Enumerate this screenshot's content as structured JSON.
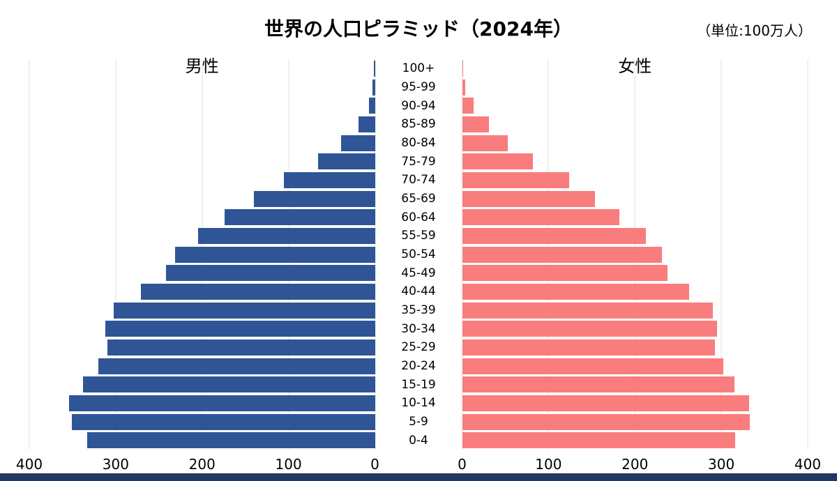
{
  "header": {
    "title": "世界の人口ピラミッド（2024年）",
    "unit_label": "（単位:100万人）"
  },
  "chart_data": {
    "type": "bar",
    "subtype": "population-pyramid",
    "orientation": "horizontal",
    "categories": [
      "100+",
      "95-99",
      "90-94",
      "85-89",
      "80-84",
      "75-79",
      "70-74",
      "65-69",
      "60-64",
      "55-59",
      "50-54",
      "45-49",
      "40-44",
      "35-39",
      "30-34",
      "25-29",
      "20-24",
      "15-19",
      "10-14",
      "5-9",
      "0-4"
    ],
    "categories_order": "top-to-bottom",
    "series": [
      {
        "name": "男性",
        "side": "left",
        "color": "#2f5597",
        "values": [
          1,
          3,
          7,
          19,
          39,
          66,
          105,
          140,
          174,
          205,
          231,
          242,
          271,
          302,
          312,
          310,
          320,
          338,
          354,
          351,
          333
        ]
      },
      {
        "name": "女性",
        "side": "right",
        "color": "#f97d7d",
        "values": [
          1,
          4,
          13,
          31,
          53,
          82,
          124,
          154,
          182,
          213,
          231,
          238,
          263,
          290,
          295,
          293,
          302,
          315,
          332,
          333,
          316
        ]
      }
    ],
    "xlim": [
      0,
      400
    ],
    "x_ticks_left": [
      "400",
      "300",
      "200",
      "100",
      "0"
    ],
    "x_ticks_right": [
      "0",
      "100",
      "200",
      "300",
      "400"
    ],
    "grid": true,
    "legend_position": "none"
  },
  "colors": {
    "male": "#2f5597",
    "female": "#f97d7d",
    "gridline": "#e0e0e0",
    "footer_bar": "#1f3864",
    "background": "#ffffff",
    "text": "#000000"
  }
}
